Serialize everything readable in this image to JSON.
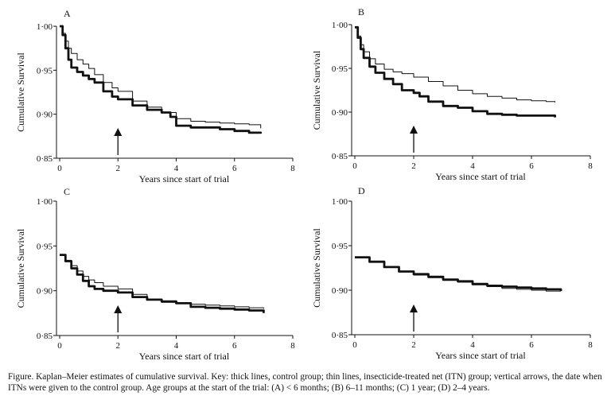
{
  "chart_data": [
    {
      "type": "line",
      "panel_label": "A",
      "xlabel": "Years since start of trial",
      "ylabel": "Cumulative Survival",
      "xlim": [
        0,
        8
      ],
      "ylim": [
        0.85,
        1.0
      ],
      "x_ticks": [
        "0",
        "2",
        "4",
        "6",
        "8"
      ],
      "y_ticks": [
        "0·85",
        "0·90",
        "0·95",
        "1·00"
      ],
      "arrow_x": 2,
      "series": [
        {
          "name": "control group",
          "style": "thick",
          "x": [
            0,
            0.1,
            0.2,
            0.3,
            0.4,
            0.6,
            0.8,
            1.0,
            1.2,
            1.5,
            1.8,
            2.0,
            2.5,
            3.0,
            3.5,
            3.8,
            4.0,
            4.5,
            5.0,
            5.5,
            6.0,
            6.5,
            6.9
          ],
          "y": [
            1.0,
            0.99,
            0.975,
            0.962,
            0.953,
            0.948,
            0.944,
            0.94,
            0.936,
            0.926,
            0.92,
            0.917,
            0.91,
            0.905,
            0.902,
            0.897,
            0.887,
            0.885,
            0.885,
            0.883,
            0.881,
            0.879,
            0.878
          ]
        },
        {
          "name": "insecticide-treated net (ITN) group",
          "style": "thin",
          "x": [
            0,
            0.1,
            0.2,
            0.3,
            0.4,
            0.6,
            0.8,
            1.0,
            1.2,
            1.5,
            1.8,
            2.0,
            2.5,
            3.0,
            3.5,
            4.0,
            4.5,
            5.0,
            5.5,
            6.0,
            6.5,
            6.9
          ],
          "y": [
            1.0,
            0.992,
            0.983,
            0.975,
            0.969,
            0.962,
            0.957,
            0.952,
            0.945,
            0.936,
            0.93,
            0.926,
            0.915,
            0.908,
            0.902,
            0.895,
            0.892,
            0.891,
            0.89,
            0.889,
            0.888,
            0.884
          ]
        }
      ]
    },
    {
      "type": "line",
      "panel_label": "B",
      "xlabel": "Years since start of trial",
      "ylabel": "Cumulative Survival",
      "xlim": [
        0,
        8
      ],
      "ylim": [
        0.85,
        1.0
      ],
      "x_ticks": [
        "0",
        "2",
        "4",
        "6",
        "8"
      ],
      "y_ticks": [
        "0·85",
        "0·90",
        "0·95",
        "1·00"
      ],
      "arrow_x": 2,
      "series": [
        {
          "name": "control group",
          "style": "thick",
          "x": [
            0,
            0.1,
            0.2,
            0.3,
            0.5,
            0.7,
            1.0,
            1.3,
            1.6,
            2.0,
            2.2,
            2.5,
            3.0,
            3.5,
            4.0,
            4.5,
            5.0,
            5.5,
            6.0,
            6.5,
            6.8
          ],
          "y": [
            0.997,
            0.985,
            0.972,
            0.962,
            0.952,
            0.945,
            0.938,
            0.932,
            0.925,
            0.922,
            0.918,
            0.912,
            0.907,
            0.905,
            0.901,
            0.898,
            0.897,
            0.896,
            0.896,
            0.896,
            0.894
          ]
        },
        {
          "name": "insecticide-treated net (ITN) group",
          "style": "thin",
          "x": [
            0,
            0.1,
            0.2,
            0.3,
            0.5,
            0.7,
            1.0,
            1.3,
            1.6,
            2.0,
            2.5,
            3.0,
            3.5,
            4.0,
            4.5,
            5.0,
            5.5,
            6.0,
            6.5,
            6.8
          ],
          "y": [
            0.997,
            0.987,
            0.977,
            0.969,
            0.961,
            0.955,
            0.949,
            0.946,
            0.944,
            0.94,
            0.935,
            0.93,
            0.925,
            0.921,
            0.918,
            0.916,
            0.914,
            0.913,
            0.912,
            0.911
          ]
        }
      ]
    },
    {
      "type": "line",
      "panel_label": "C",
      "xlabel": "Years since start of trial",
      "ylabel": "Cumulative Survival",
      "xlim": [
        0,
        8
      ],
      "ylim": [
        0.85,
        1.0
      ],
      "x_ticks": [
        "0",
        "2",
        "4",
        "6",
        "8"
      ],
      "y_ticks": [
        "0·85",
        "0·90",
        "0·95",
        "1·00"
      ],
      "arrow_x": 2,
      "series": [
        {
          "name": "control group",
          "style": "thick",
          "x": [
            0,
            0.2,
            0.4,
            0.6,
            0.8,
            1.0,
            1.2,
            1.5,
            2.0,
            2.5,
            3.0,
            3.5,
            4.0,
            4.5,
            5.0,
            5.5,
            6.0,
            6.5,
            7.0
          ],
          "y": [
            0.94,
            0.933,
            0.925,
            0.918,
            0.911,
            0.905,
            0.902,
            0.9,
            0.898,
            0.893,
            0.89,
            0.888,
            0.886,
            0.882,
            0.881,
            0.88,
            0.879,
            0.878,
            0.875
          ]
        },
        {
          "name": "insecticide-treated net (ITN) group",
          "style": "thin",
          "x": [
            0,
            0.2,
            0.4,
            0.6,
            0.8,
            1.0,
            1.2,
            1.5,
            2.0,
            2.5,
            3.0,
            3.5,
            4.0,
            4.5,
            5.0,
            5.5,
            6.0,
            6.5,
            7.0
          ],
          "y": [
            0.94,
            0.934,
            0.928,
            0.922,
            0.916,
            0.912,
            0.909,
            0.905,
            0.902,
            0.896,
            0.89,
            0.887,
            0.886,
            0.885,
            0.884,
            0.883,
            0.882,
            0.881,
            0.88
          ]
        }
      ]
    },
    {
      "type": "line",
      "panel_label": "D",
      "xlabel": "Years since start of trial",
      "ylabel": "Cumulative Survival",
      "xlim": [
        0,
        8
      ],
      "ylim": [
        0.85,
        1.0
      ],
      "x_ticks": [
        "0",
        "2",
        "4",
        "6",
        "8"
      ],
      "y_ticks": [
        "0·85",
        "0·90",
        "0·95",
        "1·00"
      ],
      "arrow_x": 2,
      "series": [
        {
          "name": "control group",
          "style": "thick",
          "x": [
            0,
            0.5,
            1.0,
            1.5,
            2.0,
            2.5,
            3.0,
            3.5,
            4.0,
            4.5,
            5.0,
            5.5,
            6.0,
            6.5,
            7.0
          ],
          "y": [
            0.937,
            0.932,
            0.926,
            0.921,
            0.918,
            0.915,
            0.912,
            0.91,
            0.907,
            0.905,
            0.904,
            0.903,
            0.902,
            0.901,
            0.899
          ]
        },
        {
          "name": "insecticide-treated net (ITN) group",
          "style": "thin",
          "x": [
            0,
            0.5,
            1.0,
            1.5,
            2.0,
            2.5,
            3.0,
            3.5,
            4.0,
            4.5,
            5.0,
            5.5,
            6.0,
            6.5,
            7.0
          ],
          "y": [
            0.937,
            0.932,
            0.926,
            0.921,
            0.917,
            0.914,
            0.911,
            0.909,
            0.906,
            0.904,
            0.902,
            0.901,
            0.9,
            0.899,
            0.899
          ]
        }
      ]
    }
  ],
  "caption": "Figure. Kaplan–Meier estimates of cumulative survival. Key: thick lines, control group; thin lines, insecticide-treated net (ITN) group; vertical arrows, the date when ITNs were given to the control group. Age groups at the start of the trial: (A) < 6 months; (B) 6–11 months; (C) 1 year; (D) 2–4 years.",
  "colors": {
    "line": "#111111",
    "background": "#ffffff"
  }
}
